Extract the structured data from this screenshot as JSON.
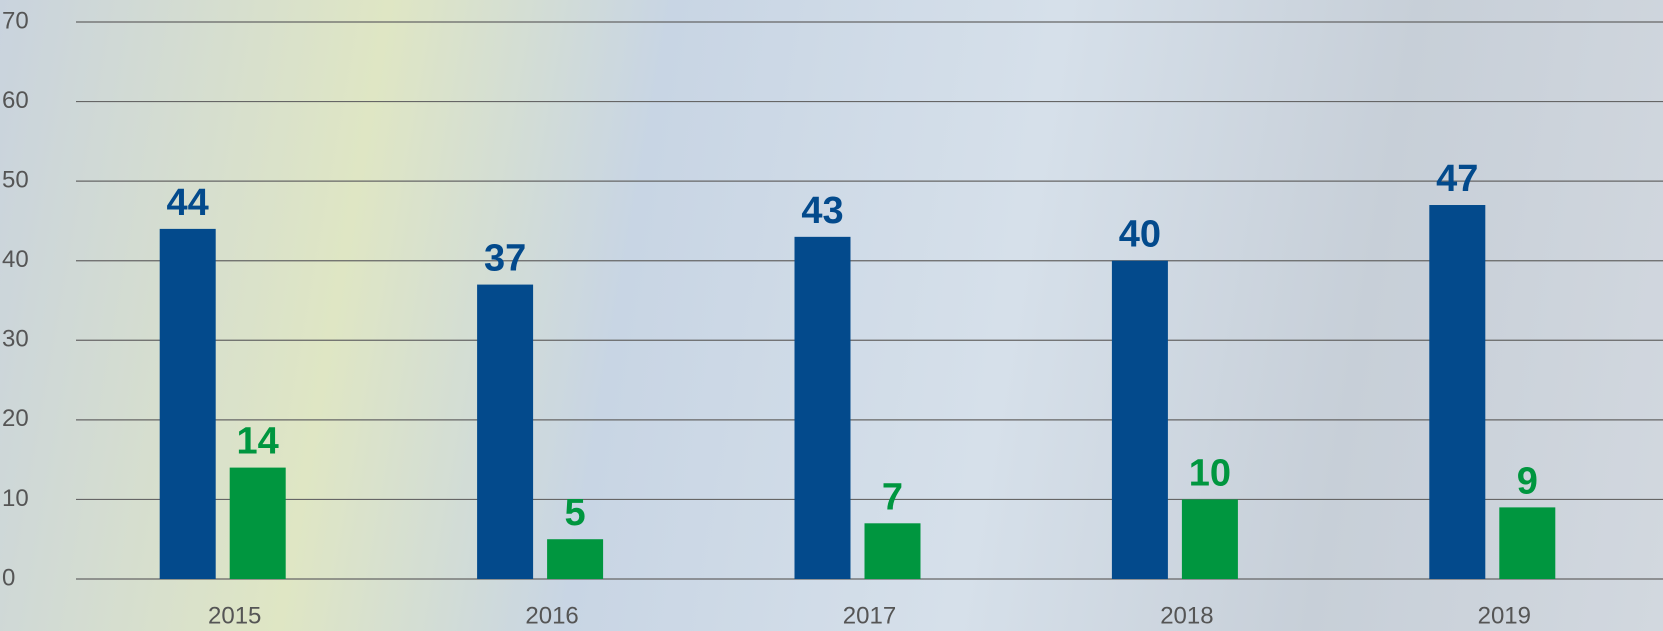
{
  "chart_data": {
    "type": "bar",
    "categories": [
      "2015",
      "2016",
      "2017",
      "2018",
      "2019"
    ],
    "series": [
      {
        "color": "#034a8c",
        "values": [
          44,
          37,
          43,
          40,
          47
        ]
      },
      {
        "color": "#00963f",
        "values": [
          14,
          5,
          7,
          10,
          9
        ]
      }
    ],
    "ylim": [
      0,
      70
    ],
    "yticks": [
      0,
      10,
      20,
      30,
      40,
      50,
      60,
      70
    ],
    "grid": true
  }
}
